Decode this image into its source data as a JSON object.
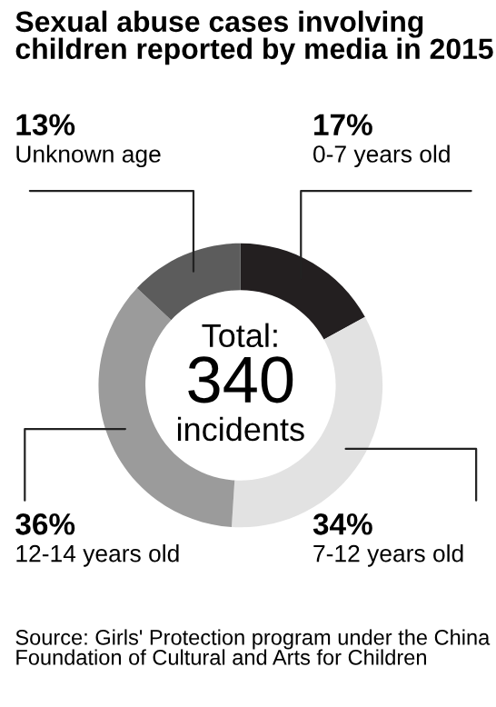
{
  "chart_data": {
    "type": "donut",
    "title": "Sexual abuse cases involving children reported by media in 2015",
    "categories": [
      "0-7 years old",
      "7-12 years old",
      "12-14 years old",
      "Unknown age"
    ],
    "values": [
      17,
      34,
      36,
      13
    ],
    "value_labels": [
      "17%",
      "34%",
      "36%",
      "13%"
    ],
    "colors": [
      "#231f20",
      "#e2e2e2",
      "#9b9b9b",
      "#5c5c5c"
    ],
    "annotations": [
      "Total:",
      "340",
      "incidents",
      "Source: Girls' Protection program under the China Foundation of Cultural and Arts for Children"
    ],
    "legend": false
  }
}
